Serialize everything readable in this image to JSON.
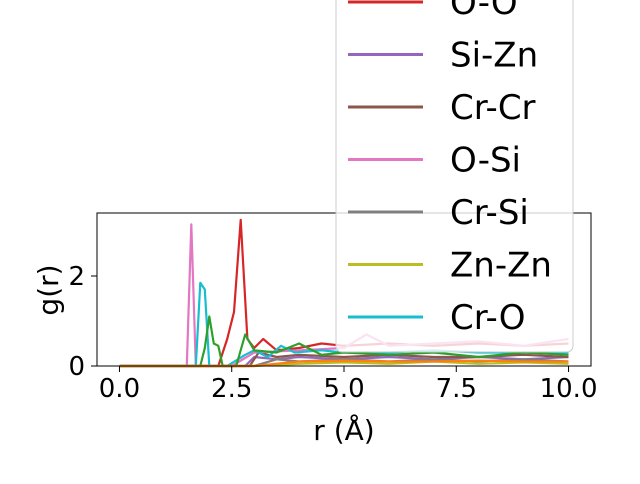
{
  "chart_data": {
    "type": "line",
    "xlabel": "r (Å)",
    "ylabel": "g(r)",
    "xlim": [
      -0.5,
      10.5
    ],
    "ylim": [
      0,
      3.4
    ],
    "xticks": [
      "0.0",
      "2.5",
      "5.0",
      "7.5",
      "10.0"
    ],
    "yticks": [
      "0",
      "2"
    ],
    "grid": false,
    "legend_position": "upper-right (overflowing above plot)",
    "series": [
      {
        "name": "O-O",
        "color": "#d62728",
        "x": [
          0,
          2.2,
          2.4,
          2.55,
          2.7,
          2.85,
          3.0,
          3.2,
          3.5,
          4.0,
          4.5,
          5.0,
          6.0,
          7.0,
          8.0,
          9.0,
          10.0
        ],
        "y": [
          0,
          0,
          0.6,
          1.2,
          3.25,
          0.6,
          0.4,
          0.6,
          0.35,
          0.4,
          0.5,
          0.45,
          0.5,
          0.45,
          0.5,
          0.45,
          0.5
        ]
      },
      {
        "name": "Si-Zn",
        "color": "#9467bd",
        "x": [
          0,
          2.8,
          3.0,
          3.5,
          4.0,
          5.0,
          6.0,
          7.0,
          8.0,
          9.0,
          10.0
        ],
        "y": [
          0,
          0,
          0.2,
          0.15,
          0.2,
          0.15,
          0.2,
          0.15,
          0.2,
          0.15,
          0.2
        ]
      },
      {
        "name": "Cr-Cr",
        "color": "#8c564b",
        "x": [
          0,
          2.9,
          3.1,
          3.5,
          4.0,
          5.0,
          6.0,
          7.0,
          8.0,
          9.0,
          10.0
        ],
        "y": [
          0,
          0,
          0.3,
          0.2,
          0.25,
          0.2,
          0.25,
          0.2,
          0.2,
          0.25,
          0.2
        ]
      },
      {
        "name": "O-Si",
        "color": "#e377c2",
        "x": [
          0,
          1.5,
          1.6,
          1.7,
          1.8,
          2.5,
          3.0,
          4.0,
          5.0,
          5.5,
          6.0,
          7.0,
          8.0,
          9.0,
          10.0
        ],
        "y": [
          0,
          0,
          3.15,
          0,
          0,
          0,
          0.3,
          0.35,
          0.4,
          0.7,
          0.45,
          0.5,
          0.55,
          0.45,
          0.6
        ]
      },
      {
        "name": "Cr-Si",
        "color": "#7f7f7f",
        "x": [
          0,
          3.0,
          3.5,
          4.0,
          5.0,
          6.0,
          7.0,
          8.0,
          9.0,
          10.0
        ],
        "y": [
          0,
          0,
          0.15,
          0.1,
          0.15,
          0.1,
          0.15,
          0.1,
          0.15,
          0.1
        ]
      },
      {
        "name": "Zn-Zn",
        "color": "#bcbd22",
        "x": [
          0,
          3.0,
          4.0,
          5.0,
          6.0,
          7.0,
          8.0,
          9.0,
          10.0
        ],
        "y": [
          0,
          0,
          0.05,
          0.08,
          0.05,
          0.1,
          0.05,
          0.08,
          0.05
        ]
      },
      {
        "name": "Cr-O",
        "color": "#17becf",
        "x": [
          0,
          1.7,
          1.8,
          1.9,
          2.0,
          2.1,
          2.4,
          2.8,
          3.0,
          3.3,
          3.6,
          3.9,
          4.5,
          5.0,
          6.0,
          7.0,
          8.0,
          9.0,
          10.0
        ],
        "y": [
          0,
          0,
          1.85,
          1.7,
          0,
          0,
          0,
          0.25,
          0.35,
          0.2,
          0.45,
          0.3,
          0.35,
          0.3,
          0.3,
          0.35,
          0.3,
          0.3,
          0.3
        ]
      },
      {
        "name": "",
        "color": "#2ca02c",
        "x": [
          0,
          1.8,
          1.9,
          2.0,
          2.1,
          2.2,
          2.3,
          2.6,
          2.8,
          3.0,
          3.5,
          4.0,
          4.5,
          5.0,
          6.0,
          7.0,
          8.0,
          9.0,
          10.0
        ],
        "y": [
          0,
          0,
          0.4,
          1.1,
          0.5,
          0.45,
          0,
          0,
          0.7,
          0.35,
          0.3,
          0.5,
          0.25,
          0.3,
          0.25,
          0.3,
          0.2,
          0.3,
          0.25
        ]
      },
      {
        "name": "",
        "color": "#ff7f0e",
        "x": [
          0,
          3.0,
          4.0,
          5.0,
          6.0,
          7.0,
          8.0,
          9.0,
          10.0
        ],
        "y": [
          0,
          0,
          0.1,
          0.12,
          0.1,
          0.1,
          0.12,
          0.1,
          0.1
        ]
      }
    ],
    "legend_entries": [
      "O-O",
      "Si-Zn",
      "Cr-Cr",
      "O-Si",
      "Cr-Si",
      "Zn-Zn",
      "Cr-O"
    ]
  }
}
